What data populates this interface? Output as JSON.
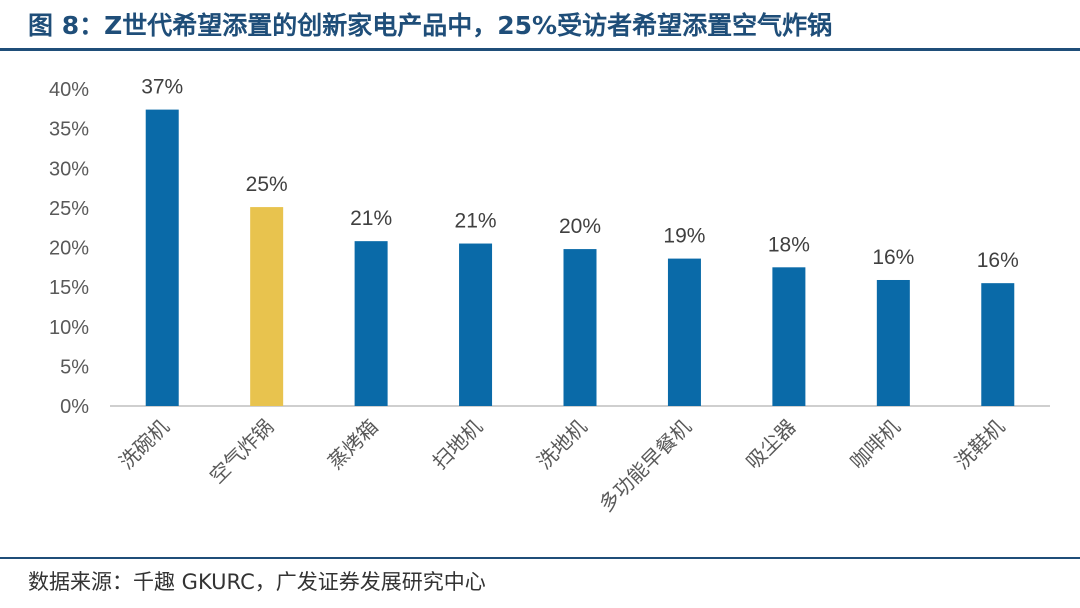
{
  "figure": {
    "title": "图 8：Z世代希望添置的创新家电产品中，25%受访者希望添置空气炸锅",
    "source": "数据来源：千趣 GKURC，广发证券发展研究中心"
  },
  "colors": {
    "bar": "#0a6aa8",
    "highlight": "#e8c34e",
    "title": "#1f4e79",
    "axis": "#bfbfbf",
    "text": "#595959"
  },
  "chart_data": {
    "type": "bar",
    "categories": [
      "洗碗机",
      "空气炸锅",
      "蒸烤箱",
      "扫地机",
      "洗地机",
      "多功能早餐机",
      "吸尘器",
      "咖啡机",
      "洗鞋机"
    ],
    "values": [
      37.4,
      25.1,
      20.8,
      20.5,
      19.8,
      18.6,
      17.5,
      15.9,
      15.5
    ],
    "data_labels": [
      "37%",
      "25%",
      "21%",
      "21%",
      "20%",
      "19%",
      "18%",
      "16%",
      "16%"
    ],
    "highlight_index": 1,
    "ylim": [
      0,
      40
    ],
    "yticks": [
      0,
      5,
      10,
      15,
      20,
      25,
      30,
      35,
      40
    ],
    "ytick_labels": [
      "0%",
      "5%",
      "10%",
      "15%",
      "20%",
      "25%",
      "30%",
      "35%",
      "40%"
    ],
    "grid": false,
    "legend": "none"
  }
}
